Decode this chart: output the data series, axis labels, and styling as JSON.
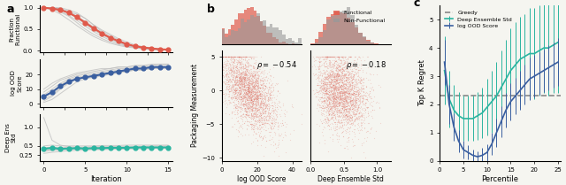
{
  "panel_a": {
    "iterations": [
      0,
      1,
      2,
      3,
      4,
      5,
      6,
      7,
      8,
      9,
      10,
      11,
      12,
      13,
      14,
      15
    ],
    "frac_func_mean": [
      1.0,
      0.98,
      0.95,
      0.88,
      0.78,
      0.65,
      0.52,
      0.4,
      0.3,
      0.22,
      0.15,
      0.1,
      0.07,
      0.05,
      0.03,
      0.02
    ],
    "frac_func_lines": [
      [
        1.0,
        1.0,
        0.95,
        0.9,
        0.85,
        0.75,
        0.6,
        0.45,
        0.35,
        0.25,
        0.15,
        0.1,
        0.08,
        0.05,
        0.03,
        0.01
      ],
      [
        1.0,
        1.0,
        0.98,
        0.92,
        0.8,
        0.68,
        0.55,
        0.42,
        0.3,
        0.2,
        0.12,
        0.08,
        0.05,
        0.03,
        0.02,
        0.01
      ],
      [
        1.0,
        0.98,
        0.9,
        0.8,
        0.65,
        0.5,
        0.38,
        0.28,
        0.2,
        0.14,
        0.1,
        0.07,
        0.05,
        0.03,
        0.02,
        0.01
      ],
      [
        1.0,
        1.0,
        1.0,
        0.95,
        0.88,
        0.75,
        0.6,
        0.48,
        0.38,
        0.28,
        0.2,
        0.13,
        0.09,
        0.06,
        0.04,
        0.02
      ],
      [
        1.0,
        0.95,
        0.85,
        0.72,
        0.58,
        0.45,
        0.33,
        0.24,
        0.17,
        0.12,
        0.08,
        0.06,
        0.04,
        0.02,
        0.01,
        0.01
      ],
      [
        1.0,
        1.0,
        0.98,
        0.88,
        0.75,
        0.62,
        0.48,
        0.37,
        0.27,
        0.19,
        0.13,
        0.09,
        0.06,
        0.04,
        0.02,
        0.01
      ],
      [
        1.0,
        0.98,
        0.92,
        0.82,
        0.7,
        0.57,
        0.44,
        0.33,
        0.24,
        0.17,
        0.11,
        0.08,
        0.05,
        0.03,
        0.02,
        0.01
      ]
    ],
    "log_ood_mean": [
      5,
      8,
      12,
      15,
      17,
      18,
      19,
      20,
      21,
      22,
      23,
      24,
      24,
      25,
      25,
      25
    ],
    "log_ood_lines": [
      [
        2,
        5,
        10,
        14,
        17,
        18,
        19,
        20,
        21,
        22,
        23,
        24,
        24,
        25,
        25,
        25
      ],
      [
        8,
        12,
        16,
        18,
        20,
        21,
        22,
        23,
        24,
        25,
        25,
        26,
        26,
        27,
        27,
        27
      ],
      [
        3,
        6,
        11,
        15,
        17,
        18,
        19,
        20,
        21,
        22,
        22,
        23,
        23,
        24,
        24,
        24
      ],
      [
        10,
        14,
        17,
        19,
        21,
        22,
        23,
        24,
        24,
        25,
        25,
        26,
        26,
        26,
        27,
        27
      ],
      [
        1,
        3,
        7,
        11,
        15,
        17,
        18,
        19,
        20,
        21,
        22,
        23,
        23,
        24,
        24,
        24
      ],
      [
        6,
        10,
        14,
        17,
        19,
        20,
        21,
        22,
        23,
        24,
        24,
        25,
        25,
        25,
        26,
        26
      ],
      [
        4,
        8,
        13,
        16,
        18,
        19,
        20,
        21,
        22,
        23,
        23,
        24,
        24,
        25,
        25,
        25
      ]
    ],
    "deep_ens_mean": [
      0.42,
      0.45,
      0.42,
      0.43,
      0.44,
      0.43,
      0.44,
      0.44,
      0.45,
      0.45,
      0.45,
      0.46,
      0.46,
      0.46,
      0.46,
      0.46
    ],
    "deep_ens_lines": [
      [
        1.25,
        0.65,
        0.52,
        0.48,
        0.46,
        0.45,
        0.45,
        0.45,
        0.45,
        0.46,
        0.46,
        0.46,
        0.47,
        0.47,
        0.47,
        0.47
      ],
      [
        0.35,
        0.38,
        0.4,
        0.41,
        0.42,
        0.42,
        0.43,
        0.43,
        0.43,
        0.44,
        0.44,
        0.44,
        0.45,
        0.45,
        0.45,
        0.45
      ],
      [
        0.3,
        0.33,
        0.35,
        0.37,
        0.38,
        0.39,
        0.4,
        0.4,
        0.41,
        0.41,
        0.42,
        0.42,
        0.42,
        0.43,
        0.43,
        0.43
      ],
      [
        0.45,
        0.47,
        0.46,
        0.46,
        0.47,
        0.47,
        0.48,
        0.48,
        0.48,
        0.49,
        0.49,
        0.49,
        0.49,
        0.5,
        0.5,
        0.5
      ],
      [
        0.4,
        0.42,
        0.42,
        0.43,
        0.43,
        0.43,
        0.44,
        0.44,
        0.44,
        0.44,
        0.45,
        0.45,
        0.45,
        0.45,
        0.46,
        0.46
      ],
      [
        0.38,
        0.4,
        0.4,
        0.41,
        0.41,
        0.42,
        0.42,
        0.42,
        0.43,
        0.43,
        0.43,
        0.44,
        0.44,
        0.44,
        0.44,
        0.45
      ],
      [
        0.5,
        0.52,
        0.5,
        0.5,
        0.5,
        0.5,
        0.5,
        0.51,
        0.51,
        0.51,
        0.52,
        0.52,
        0.52,
        0.52,
        0.52,
        0.52
      ]
    ],
    "color_frac": "#e05a4b",
    "color_ood": "#3a5fa0",
    "color_ens": "#2ab5a0",
    "color_lines": "#c0c0c0"
  },
  "panel_b": {
    "rho1": -0.54,
    "rho2": -0.18,
    "color_functional": "#e05a4b",
    "color_nonfunctional": "#999999",
    "xlabel1": "log OOD Score",
    "xlabel2": "Deep Ensemble Std",
    "ylabel": "Packaging Measurement",
    "legend_functional": "Functional",
    "legend_nonfunctional": "Non-Functional"
  },
  "panel_c": {
    "percentiles": [
      1,
      2,
      3,
      4,
      5,
      6,
      7,
      8,
      9,
      10,
      11,
      12,
      13,
      14,
      15,
      16,
      17,
      18,
      19,
      20,
      21,
      22,
      23,
      24,
      25
    ],
    "greedy_val": 2.3,
    "ood_mean": [
      3.5,
      2.0,
      1.2,
      0.7,
      0.4,
      0.3,
      0.2,
      0.15,
      0.2,
      0.3,
      0.6,
      1.0,
      1.4,
      1.8,
      2.1,
      2.3,
      2.5,
      2.7,
      2.9,
      3.0,
      3.1,
      3.2,
      3.3,
      3.4,
      3.5
    ],
    "ood_std": [
      0.8,
      0.7,
      0.5,
      0.4,
      0.3,
      0.25,
      0.2,
      0.2,
      0.25,
      0.3,
      0.4,
      0.5,
      0.55,
      0.6,
      0.65,
      0.65,
      0.7,
      0.7,
      0.75,
      0.75,
      0.75,
      0.75,
      0.8,
      0.8,
      0.85
    ],
    "ens_mean": [
      3.2,
      2.2,
      1.8,
      1.6,
      1.5,
      1.5,
      1.5,
      1.6,
      1.7,
      1.9,
      2.1,
      2.3,
      2.6,
      2.9,
      3.2,
      3.4,
      3.6,
      3.7,
      3.8,
      3.8,
      3.9,
      4.0,
      4.0,
      4.1,
      4.2
    ],
    "ens_std": [
      1.2,
      1.0,
      0.9,
      0.85,
      0.8,
      0.8,
      0.8,
      0.85,
      0.9,
      1.0,
      1.1,
      1.2,
      1.3,
      1.4,
      1.5,
      1.5,
      1.5,
      1.5,
      1.6,
      1.6,
      1.6,
      1.6,
      1.7,
      1.7,
      1.8
    ],
    "color_greedy": "#888888",
    "color_ood": "#3a5fa0",
    "color_ens": "#2ab5a0",
    "xlabel": "Percentile",
    "ylabel": "Top K Regret",
    "ylim": [
      0,
      5.5
    ]
  },
  "bg_color": "#f5f5f0"
}
